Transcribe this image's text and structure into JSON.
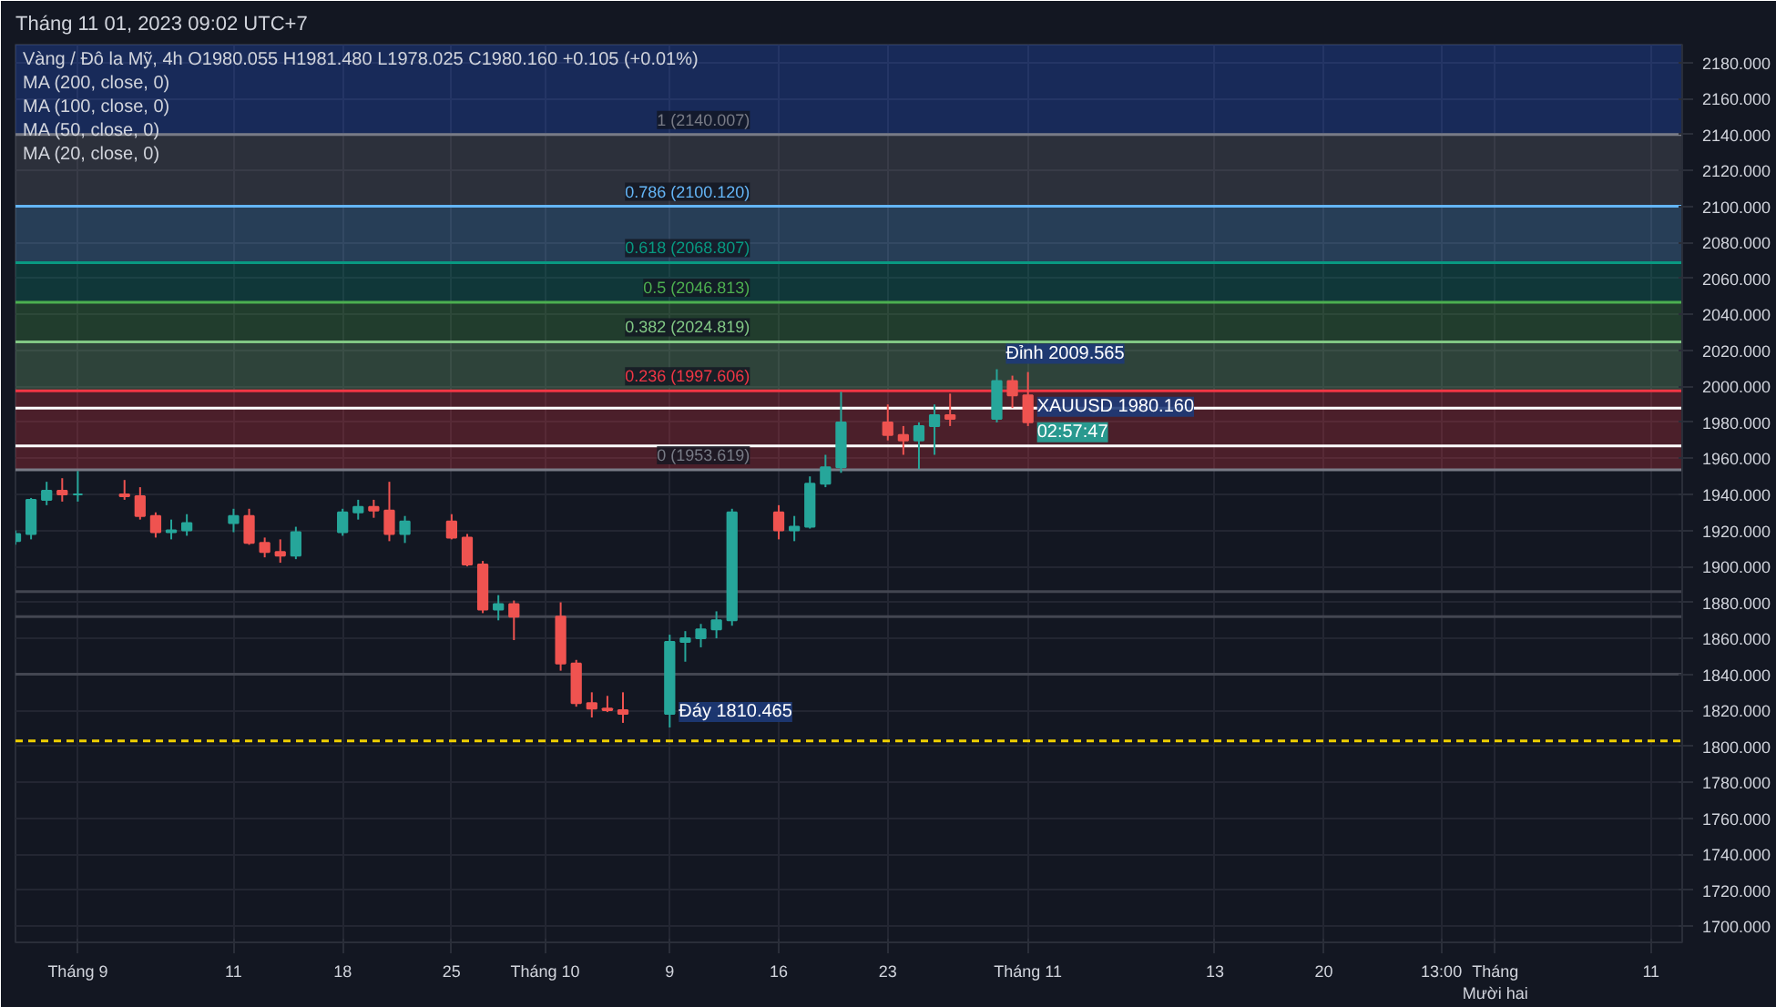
{
  "chart_data": {
    "type": "candlestick",
    "title": "Vàng / Đô la Mỹ, 4h O1980.055 H1981.480 L1978.025 C1980.160 +0.105 (+0.01%)",
    "subtitle": "Tháng 11 01, 2023 09:02 UTC+7",
    "x": [
      "2023-08-28",
      "2023-08-29",
      "2023-08-30",
      "2023-08-31",
      "2023-09-01",
      "2023-09-04",
      "2023-09-05",
      "2023-09-06",
      "2023-09-07",
      "2023-09-08",
      "2023-09-11",
      "2023-09-12",
      "2023-09-13",
      "2023-09-14",
      "2023-09-15",
      "2023-09-18",
      "2023-09-19",
      "2023-09-20",
      "2023-09-21",
      "2023-09-22",
      "2023-09-25",
      "2023-09-26",
      "2023-09-27",
      "2023-09-28",
      "2023-09-29",
      "2023-10-02",
      "2023-10-03",
      "2023-10-04",
      "2023-10-05",
      "2023-10-06",
      "2023-10-09",
      "2023-10-10",
      "2023-10-11",
      "2023-10-12",
      "2023-10-13",
      "2023-10-16",
      "2023-10-17",
      "2023-10-18",
      "2023-10-19",
      "2023-10-20",
      "2023-10-23",
      "2023-10-24",
      "2023-10-25",
      "2023-10-26",
      "2023-10-27",
      "2023-10-30",
      "2023-10-31",
      "2023-11-01"
    ],
    "ohlc": [
      [
        1914,
        1920,
        1912,
        1918
      ],
      [
        1918,
        1938,
        1915,
        1937
      ],
      [
        1937,
        1947,
        1934,
        1942
      ],
      [
        1942,
        1949,
        1936,
        1940
      ],
      [
        1940,
        1953,
        1936,
        1940
      ],
      [
        1940,
        1948,
        1937,
        1939
      ],
      [
        1939,
        1944,
        1926,
        1928
      ],
      [
        1928,
        1930,
        1916,
        1919
      ],
      [
        1919,
        1926,
        1915,
        1920
      ],
      [
        1920,
        1929,
        1917,
        1924
      ],
      [
        1924,
        1932,
        1919,
        1928
      ],
      [
        1928,
        1932,
        1912,
        1913
      ],
      [
        1913,
        1916,
        1905,
        1908
      ],
      [
        1908,
        1915,
        1902,
        1906
      ],
      [
        1906,
        1922,
        1904,
        1919
      ],
      [
        1919,
        1932,
        1917,
        1930
      ],
      [
        1930,
        1937,
        1926,
        1933
      ],
      [
        1933,
        1937,
        1927,
        1931
      ],
      [
        1931,
        1947,
        1914,
        1918
      ],
      [
        1918,
        1928,
        1913,
        1925
      ],
      [
        1925,
        1929,
        1915,
        1916
      ],
      [
        1916,
        1918,
        1900,
        1901
      ],
      [
        1901,
        1903,
        1874,
        1876
      ],
      [
        1876,
        1884,
        1870,
        1879
      ],
      [
        1879,
        1881,
        1859,
        1872
      ],
      [
        1872,
        1880,
        1842,
        1846
      ],
      [
        1846,
        1848,
        1822,
        1824
      ],
      [
        1824,
        1830,
        1816,
        1821
      ],
      [
        1821,
        1828,
        1819,
        1820
      ],
      [
        1820,
        1830,
        1813,
        1818
      ],
      [
        1818,
        1862,
        1810.465,
        1858
      ],
      [
        1858,
        1864,
        1847,
        1860
      ],
      [
        1860,
        1868,
        1855,
        1865
      ],
      [
        1865,
        1875,
        1860,
        1870
      ],
      [
        1870,
        1932,
        1867,
        1930
      ],
      [
        1930,
        1934,
        1915,
        1920
      ],
      [
        1920,
        1928,
        1914,
        1922
      ],
      [
        1922,
        1950,
        1921,
        1946
      ],
      [
        1946,
        1962,
        1944,
        1955
      ],
      [
        1955,
        1997,
        1952,
        1980
      ],
      [
        1980,
        1990,
        1970,
        1973
      ],
      [
        1973,
        1978,
        1962,
        1970
      ],
      [
        1970,
        1980,
        1954,
        1978
      ],
      [
        1978,
        1990,
        1962,
        1984
      ],
      [
        1984,
        1996,
        1978,
        1982
      ],
      [
        1982,
        2009.565,
        1980,
        2003
      ],
      [
        2003,
        2006,
        1988,
        1995
      ],
      [
        1995,
        2008,
        1978,
        1980.16
      ]
    ],
    "xlim": [
      "2023-08-28",
      "2023-12-13"
    ],
    "xticks": [
      {
        "value": "2023-09-01",
        "label": "Tháng 9"
      },
      {
        "value": "2023-09-11",
        "label": "11"
      },
      {
        "value": "2023-09-18",
        "label": "18"
      },
      {
        "value": "2023-09-25",
        "label": "25"
      },
      {
        "value": "2023-10-01",
        "label": "Tháng 10"
      },
      {
        "value": "2023-10-09",
        "label": "9"
      },
      {
        "value": "2023-10-16",
        "label": "16"
      },
      {
        "value": "2023-10-23",
        "label": "23"
      },
      {
        "value": "2023-11-01",
        "label": "Tháng 11"
      },
      {
        "value": "2023-11-13",
        "label": "13"
      },
      {
        "value": "2023-11-20",
        "label": "20"
      },
      {
        "value": "2023-11-27T13:00",
        "label": "13:00"
      },
      {
        "value": "2023-12-01",
        "label": "Tháng Mười hai"
      },
      {
        "value": "2023-12-11",
        "label": "11"
      }
    ],
    "ylim": [
      1691,
      2190
    ],
    "yticks": [
      {
        "value": 1700,
        "label": "1700.000"
      },
      {
        "value": 1720,
        "label": "1720.000"
      },
      {
        "value": 1740,
        "label": "1740.000"
      },
      {
        "value": 1760,
        "label": "1760.000"
      },
      {
        "value": 1780,
        "label": "1780.000"
      },
      {
        "value": 1800,
        "label": "1800.000"
      },
      {
        "value": 1820,
        "label": "1820.000"
      },
      {
        "value": 1840,
        "label": "1840.000"
      },
      {
        "value": 1860,
        "label": "1860.000"
      },
      {
        "value": 1880,
        "label": "1880.000"
      },
      {
        "value": 1900,
        "label": "1900.000"
      },
      {
        "value": 1920,
        "label": "1920.000"
      },
      {
        "value": 1940,
        "label": "1940.000"
      },
      {
        "value": 1960,
        "label": "1960.000"
      },
      {
        "value": 1980,
        "label": "1980.000"
      },
      {
        "value": 2000,
        "label": "2000.000"
      },
      {
        "value": 2020,
        "label": "2020.000"
      },
      {
        "value": 2040,
        "label": "2040.000"
      },
      {
        "value": 2060,
        "label": "2060.000"
      },
      {
        "value": 2080,
        "label": "2080.000"
      },
      {
        "value": 2100,
        "label": "2100.000"
      },
      {
        "value": 2120,
        "label": "2120.000"
      },
      {
        "value": 2140,
        "label": "2140.000"
      },
      {
        "value": 2160,
        "label": "2160.000"
      },
      {
        "value": 2180,
        "label": "2180.000"
      }
    ],
    "bands": [
      {
        "axis": "y",
        "from": 1953.619,
        "to": 1997.606,
        "color": "#f23645"
      },
      {
        "axis": "y",
        "from": 1997.606,
        "to": 2024.819,
        "color": "#81c784"
      },
      {
        "axis": "y",
        "from": 2024.819,
        "to": 2046.813,
        "color": "#4caf50"
      },
      {
        "axis": "y",
        "from": 2046.813,
        "to": 2068.807,
        "color": "#089981"
      },
      {
        "axis": "y",
        "from": 2068.807,
        "to": 2100.12,
        "color": "#64b5f6"
      },
      {
        "axis": "y",
        "from": 2100.12,
        "to": 2140.007,
        "color": "#787b86"
      },
      {
        "axis": "y",
        "from": 2140.007,
        "to": 2190,
        "color": "#2962ff"
      }
    ],
    "ref_lines": [
      {
        "axis": "y",
        "value": 1953.619,
        "label": "0 (1953.619)",
        "color": "#787b86"
      },
      {
        "axis": "y",
        "value": 1997.606,
        "label": "0.236 (1997.606)",
        "color": "#f23645"
      },
      {
        "axis": "y",
        "value": 2024.819,
        "label": "0.382 (2024.819)",
        "color": "#81c784"
      },
      {
        "axis": "y",
        "value": 2046.813,
        "label": "0.5 (2046.813)",
        "color": "#4caf50"
      },
      {
        "axis": "y",
        "value": 2068.807,
        "label": "0.618 (2068.807)",
        "color": "#089981"
      },
      {
        "axis": "y",
        "value": 2100.12,
        "label": "0.786 (2100.120)",
        "color": "#64b5f6"
      },
      {
        "axis": "y",
        "value": 2140.007,
        "label": "1 (2140.007)",
        "color": "#787b86"
      },
      {
        "axis": "y",
        "value": 1988,
        "color": "#ffffff"
      },
      {
        "axis": "y",
        "value": 1967,
        "color": "#ffffff"
      },
      {
        "axis": "y",
        "value": 1886,
        "color": "#434651"
      },
      {
        "axis": "y",
        "value": 1872,
        "color": "#434651"
      },
      {
        "axis": "y",
        "value": 1840,
        "color": "#434651"
      },
      {
        "axis": "y",
        "value": 1803,
        "color": "#f0d000",
        "line_style": "dashed"
      }
    ],
    "annotations": [
      "MA (200, close, 0)",
      "MA (100, close, 0)",
      "MA (50, close, 0)",
      "MA (20, close, 0)",
      {
        "text": "Đỉnh 2009.565",
        "x": "2023-10-30",
        "y": 2009.565
      },
      {
        "text": "XAUUSD 1980.160",
        "x": "2023-11-01",
        "y": 1980.16
      },
      {
        "text": "02:57:47",
        "x": "2023-11-01",
        "y": 1980.16
      },
      {
        "text": "Đáy 1810.465",
        "x": "2023-10-09",
        "y": 1810.465
      }
    ],
    "grid": true
  }
}
